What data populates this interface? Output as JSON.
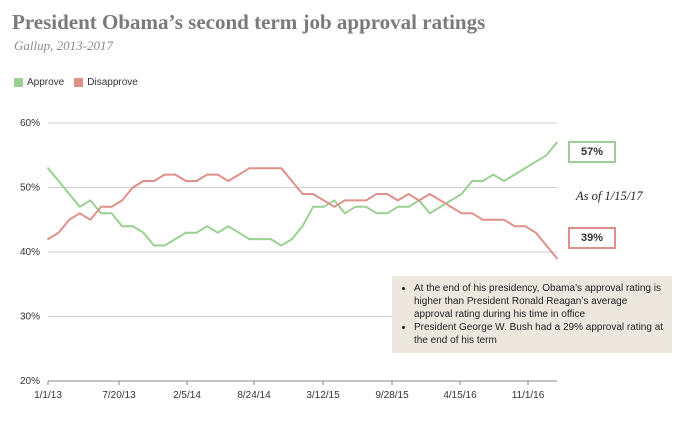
{
  "header": {
    "title": "President Obama’s second term job approval ratings",
    "subtitle": "Gallup, 2013-2017"
  },
  "colors": {
    "approve": "#9bcf93",
    "disapprove": "#e0908a"
  },
  "callouts": {
    "approve_end": "57%",
    "disapprove_end": "39%",
    "as_of": "As of 1/15/17"
  },
  "notes": [
    "At the end of his presidency, Obama’s approval rating is higher than President Ronald Reagan’s average approval rating during his time in office",
    "President George W. Bush had a 29% approval rating at the end of his term"
  ],
  "chart_data": {
    "type": "line",
    "title": "President Obama’s second term job approval ratings",
    "subtitle": "Gallup, 2013-2017",
    "xlabel": "",
    "ylabel": "",
    "ylim": [
      20,
      60
    ],
    "yticks": [
      "20%",
      "30%",
      "40%",
      "50%",
      "60%"
    ],
    "xticks": [
      "1/1/13",
      "7/20/13",
      "2/5/14",
      "8/24/14",
      "3/12/15",
      "9/28/15",
      "4/15/16",
      "11/1/16"
    ],
    "grid": true,
    "legend": "top-left",
    "x": [
      "Jan-13",
      "Feb-13",
      "Mar-13",
      "Apr-13",
      "May-13",
      "Jun-13",
      "Jul-13",
      "Aug-13",
      "Sep-13",
      "Oct-13",
      "Nov-13",
      "Dec-13",
      "Jan-14",
      "Feb-14",
      "Mar-14",
      "Apr-14",
      "May-14",
      "Jun-14",
      "Jul-14",
      "Aug-14",
      "Sep-14",
      "Oct-14",
      "Nov-14",
      "Dec-14",
      "Jan-15",
      "Feb-15",
      "Mar-15",
      "Apr-15",
      "May-15",
      "Jun-15",
      "Jul-15",
      "Aug-15",
      "Sep-15",
      "Oct-15",
      "Nov-15",
      "Dec-15",
      "Jan-16",
      "Feb-16",
      "Mar-16",
      "Apr-16",
      "May-16",
      "Jun-16",
      "Jul-16",
      "Aug-16",
      "Sep-16",
      "Oct-16",
      "Nov-16",
      "Dec-16",
      "Jan-17"
    ],
    "series": [
      {
        "name": "Approve",
        "values": [
          53,
          51,
          49,
          47,
          48,
          46,
          46,
          44,
          44,
          43,
          41,
          41,
          42,
          43,
          43,
          44,
          43,
          44,
          43,
          42,
          42,
          42,
          41,
          42,
          44,
          47,
          47,
          48,
          46,
          47,
          47,
          46,
          46,
          47,
          47,
          48,
          46,
          47,
          48,
          49,
          51,
          51,
          52,
          51,
          52,
          53,
          54,
          55,
          57
        ]
      },
      {
        "name": "Disapprove",
        "values": [
          42,
          43,
          45,
          46,
          45,
          47,
          47,
          48,
          50,
          51,
          51,
          52,
          52,
          51,
          51,
          52,
          52,
          51,
          52,
          53,
          53,
          53,
          53,
          51,
          49,
          49,
          48,
          47,
          48,
          48,
          48,
          49,
          49,
          48,
          49,
          48,
          49,
          48,
          47,
          46,
          46,
          45,
          45,
          45,
          44,
          44,
          43,
          41,
          39
        ]
      }
    ]
  }
}
